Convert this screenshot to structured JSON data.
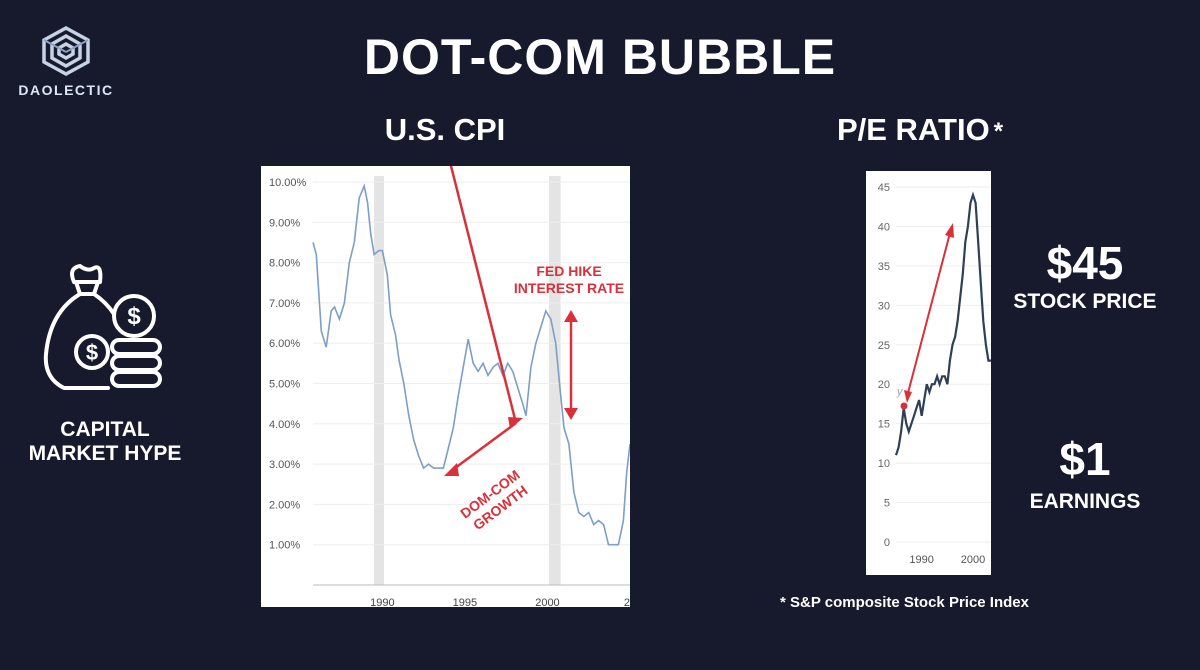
{
  "brand": {
    "name": "DAOLECTIC"
  },
  "title": "DOT-COM BUBBLE",
  "left_panel": {
    "label": "CAPITAL MARKET HYPE",
    "icon": "money-bag-coins-icon"
  },
  "cpi_section": {
    "title": "U.S. CPI"
  },
  "pe_section": {
    "title": "P/E RATIO",
    "asterisk": "*"
  },
  "right_panel": {
    "price_value": "$45",
    "price_label": "STOCK PRICE",
    "earnings_value": "$1",
    "earnings_label": "EARNINGS"
  },
  "footnote": "* S&P composite Stock Price Index",
  "colors": {
    "background": "#161a2c",
    "line": "#7b9fc6",
    "pe_line": "#2f3f58",
    "accent_red": "#d9303a",
    "recession": "#e4e4e4"
  },
  "chart_data": [
    {
      "type": "line",
      "title": "U.S. CPI",
      "x_tick_labels": [
        "1990",
        "1995",
        "2000",
        "2"
      ],
      "y_tick_labels": [
        "10.00%",
        "9.00%",
        "8.00%",
        "7.00%",
        "6.00%",
        "5.00%",
        "4.00%",
        "3.00%",
        "2.00%",
        "1.00%"
      ],
      "xlim": [
        1985.8,
        2005.0
      ],
      "ylim": [
        0,
        10.0
      ],
      "recession_bands": [
        [
          1989.5,
          1990.1
        ],
        [
          2000.1,
          2000.8
        ]
      ],
      "series": [
        {
          "x": [
            1985.8,
            1986.0,
            1986.3,
            1986.6,
            1986.9,
            1987.1,
            1987.4,
            1987.7,
            1988.0,
            1988.3,
            1988.6,
            1988.9,
            1989.1,
            1989.3,
            1989.5,
            1989.8,
            1990.0,
            1990.1,
            1990.3,
            1990.5,
            1990.8,
            1991.0,
            1991.3,
            1991.6,
            1991.9,
            1992.2,
            1992.5,
            1992.8,
            1993.1,
            1993.4,
            1993.7,
            1994.0,
            1994.3,
            1994.6,
            1994.9,
            1995.2,
            1995.5,
            1995.8,
            1996.1,
            1996.4,
            1996.7,
            1997.0,
            1997.3,
            1997.6,
            1997.9,
            1998.2,
            1998.5,
            1998.7,
            1999.0,
            1999.3,
            1999.6,
            1999.9,
            2000.2,
            2000.5,
            2000.8,
            2001.0,
            2001.3,
            2001.6,
            2001.9,
            2002.2,
            2002.5,
            2002.8,
            2003.1,
            2003.4,
            2003.7,
            2004.0,
            2004.3,
            2004.6,
            2004.8,
            2005.0
          ],
          "y": [
            8.5,
            8.2,
            6.3,
            5.9,
            6.8,
            6.9,
            6.6,
            7.0,
            8.0,
            8.5,
            9.6,
            9.9,
            9.5,
            8.7,
            8.2,
            8.3,
            8.3,
            8.1,
            7.7,
            6.7,
            6.2,
            5.6,
            5.0,
            4.2,
            3.6,
            3.2,
            2.9,
            3.0,
            2.9,
            2.9,
            2.9,
            3.4,
            3.9,
            4.7,
            5.4,
            6.1,
            5.5,
            5.3,
            5.5,
            5.2,
            5.4,
            5.5,
            5.2,
            5.5,
            5.3,
            4.9,
            4.5,
            4.2,
            5.4,
            6.0,
            6.4,
            6.8,
            6.6,
            6.0,
            4.7,
            3.9,
            3.5,
            2.3,
            1.8,
            1.7,
            1.8,
            1.5,
            1.6,
            1.5,
            1.0,
            1.0,
            1.0,
            1.6,
            2.8,
            3.5
          ]
        }
      ],
      "annotations": [
        {
          "text_lines": [
            "FED HIKE",
            "INTEREST RATE"
          ]
        },
        {
          "text_lines": [
            "DOM-COM",
            "GROWTH"
          ]
        }
      ]
    },
    {
      "type": "line",
      "title": "P/E RATIO",
      "x_tick_labels": [
        "1990",
        "2000"
      ],
      "y_tick_labels": [
        "45",
        "40",
        "35",
        "30",
        "25",
        "20",
        "15",
        "10",
        "5",
        "0"
      ],
      "xlim": [
        1985.0,
        2003.5
      ],
      "ylim": [
        0,
        45
      ],
      "partial_label": "y",
      "series": [
        {
          "x": [
            1985.0,
            1985.5,
            1986.0,
            1986.5,
            1987.0,
            1987.5,
            1988.0,
            1988.5,
            1989.0,
            1989.5,
            1990.0,
            1990.5,
            1991.0,
            1991.5,
            1992.0,
            1992.5,
            1993.0,
            1993.5,
            1994.0,
            1994.5,
            1995.0,
            1995.5,
            1996.0,
            1996.5,
            1997.0,
            1997.5,
            1998.0,
            1998.5,
            1999.0,
            1999.5,
            2000.0,
            2000.5,
            2001.0,
            2001.5,
            2002.0,
            2002.5,
            2003.0,
            2003.5
          ],
          "y": [
            11,
            12,
            14,
            17,
            15,
            14,
            15,
            16,
            17,
            18,
            16,
            18,
            20,
            19,
            20,
            20,
            21,
            20,
            21,
            21,
            20,
            23,
            25,
            26,
            28,
            31,
            34,
            38,
            40,
            43,
            44,
            43,
            38,
            33,
            28,
            25,
            23,
            23
          ]
        }
      ]
    }
  ]
}
